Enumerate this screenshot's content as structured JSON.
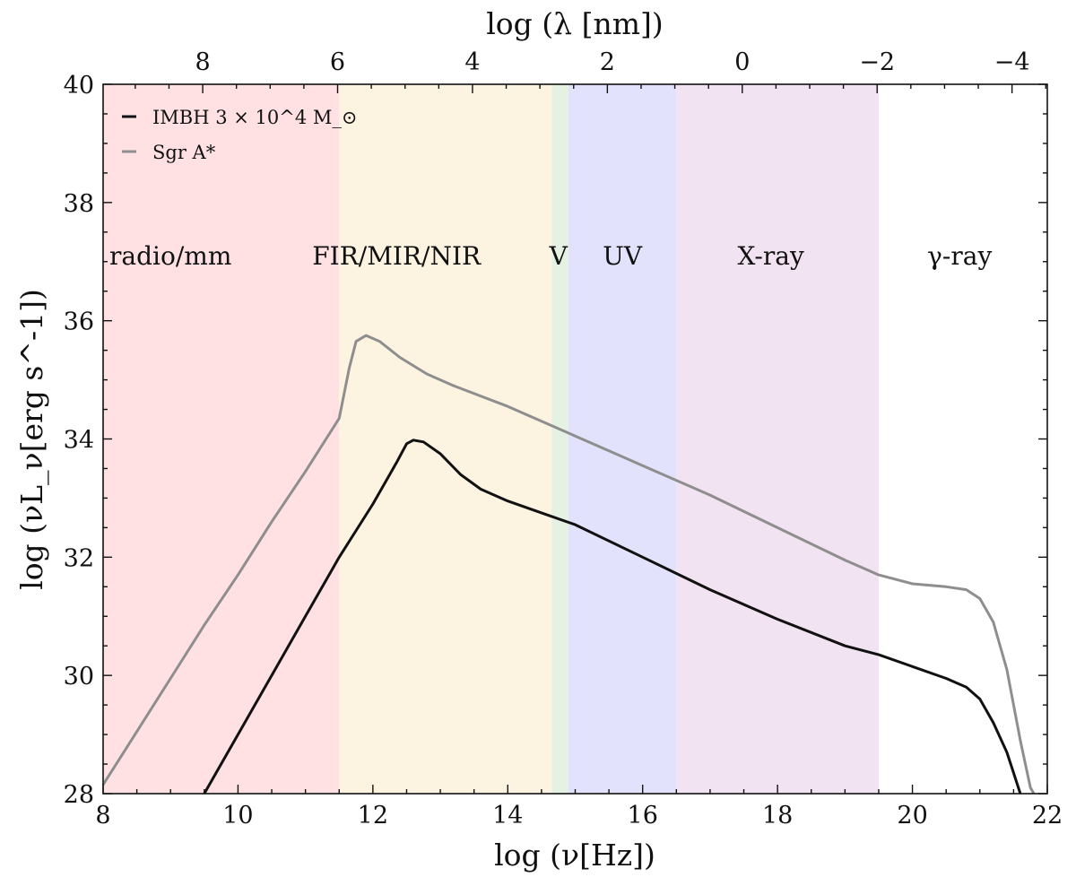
{
  "chart_data": {
    "type": "line",
    "xlabel": "log (ν[Hz])",
    "ylabel": "log (νL_ν[erg s^-1])",
    "top_xlabel": "log (λ [nm])",
    "xlim": [
      8,
      22
    ],
    "ylim": [
      28,
      40
    ],
    "x_ticks": [
      8,
      10,
      12,
      14,
      16,
      18,
      20,
      22
    ],
    "x_tick_labels": [
      "8",
      "10",
      "12",
      "14",
      "16",
      "18",
      "20",
      "22"
    ],
    "y_ticks": [
      28,
      30,
      32,
      34,
      36,
      38,
      40
    ],
    "y_tick_labels": [
      "28",
      "30",
      "32",
      "34",
      "36",
      "38",
      "40"
    ],
    "top_ticks": [
      8,
      6,
      4,
      2,
      0,
      -2,
      -4
    ],
    "top_tick_labels": [
      "8",
      "6",
      "4",
      "2",
      "0",
      "−2",
      "−4"
    ],
    "grid": false,
    "legend_position": "top-left",
    "bands": [
      {
        "name": "radio/mm",
        "from": 8,
        "to": 11.5,
        "color": "#ffe1e4"
      },
      {
        "name": "FIR/MIR/NIR",
        "from": 11.5,
        "to": 14.65,
        "color": "#fdf3e1"
      },
      {
        "name": "V",
        "from": 14.65,
        "to": 14.9,
        "color": "#e5f1e2"
      },
      {
        "name": "UV",
        "from": 14.9,
        "to": 16.5,
        "color": "#e2e2fc"
      },
      {
        "name": "X-ray",
        "from": 16.5,
        "to": 19.5,
        "color": "#f1e3f1"
      },
      {
        "name": "γ-ray",
        "from": 19.5,
        "to": 22,
        "color": "#ffffff"
      }
    ],
    "band_label_y": 37.1,
    "band_label_x": [
      9.0,
      12.35,
      14.75,
      15.7,
      17.9,
      20.7
    ],
    "series": [
      {
        "name": "IMBH 3 × 10^4 M_⊙",
        "color": "#111111",
        "x": [
          9.5,
          10.0,
          10.5,
          11.0,
          11.5,
          12.0,
          12.35,
          12.5,
          12.6,
          12.75,
          13.0,
          13.3,
          13.6,
          14.0,
          14.5,
          15.0,
          16.0,
          17.0,
          18.0,
          19.0,
          19.5,
          20.0,
          20.5,
          20.8,
          21.0,
          21.2,
          21.4,
          21.5,
          21.6
        ],
        "values": [
          28.0,
          29.0,
          30.0,
          31.0,
          32.0,
          32.9,
          33.6,
          33.92,
          33.98,
          33.95,
          33.75,
          33.4,
          33.15,
          32.95,
          32.75,
          32.55,
          32.0,
          31.45,
          30.95,
          30.5,
          30.35,
          30.15,
          29.95,
          29.8,
          29.6,
          29.2,
          28.7,
          28.35,
          28.0
        ]
      },
      {
        "name": "Sgr A*",
        "color": "#8e8e8e",
        "x": [
          8.0,
          8.5,
          9.0,
          9.5,
          10.0,
          10.5,
          11.0,
          11.5,
          11.65,
          11.75,
          11.9,
          12.1,
          12.4,
          12.8,
          13.2,
          14.0,
          15.0,
          16.0,
          17.0,
          18.0,
          19.0,
          19.5,
          20.0,
          20.5,
          20.8,
          21.0,
          21.2,
          21.4,
          21.6,
          21.75,
          21.8
        ],
        "values": [
          28.15,
          29.05,
          29.95,
          30.85,
          31.7,
          32.6,
          33.45,
          34.35,
          35.2,
          35.65,
          35.75,
          35.65,
          35.38,
          35.1,
          34.9,
          34.55,
          34.05,
          33.55,
          33.05,
          32.5,
          31.95,
          31.7,
          31.55,
          31.5,
          31.45,
          31.3,
          30.9,
          30.1,
          28.9,
          28.1,
          28.0
        ]
      }
    ]
  }
}
